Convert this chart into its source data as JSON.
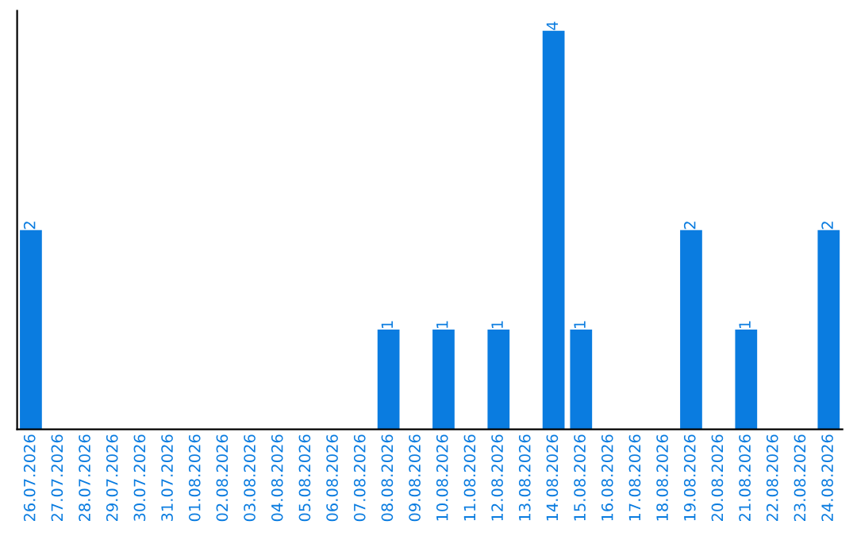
{
  "chart_data": {
    "type": "bar",
    "categories": [
      "26.07.2026",
      "27.07.2026",
      "28.07.2026",
      "29.07.2026",
      "30.07.2026",
      "31.07.2026",
      "01.08.2026",
      "02.08.2026",
      "03.08.2026",
      "04.08.2026",
      "05.08.2026",
      "06.08.2026",
      "07.08.2026",
      "08.08.2026",
      "09.08.2026",
      "10.08.2026",
      "11.08.2026",
      "12.08.2026",
      "13.08.2026",
      "14.08.2026",
      "15.08.2026",
      "16.08.2026",
      "17.08.2026",
      "18.08.2026",
      "19.08.2026",
      "20.08.2026",
      "21.08.2026",
      "22.08.2026",
      "23.08.2026",
      "24.08.2026"
    ],
    "values": [
      2,
      0,
      0,
      0,
      0,
      0,
      0,
      0,
      0,
      0,
      0,
      0,
      0,
      1,
      0,
      1,
      0,
      1,
      0,
      4,
      1,
      0,
      0,
      0,
      2,
      0,
      1,
      0,
      0,
      2
    ],
    "value_labels": [
      "2",
      null,
      null,
      null,
      null,
      null,
      null,
      null,
      null,
      null,
      null,
      null,
      null,
      "1",
      null,
      "1",
      null,
      "1",
      null,
      "4",
      "1",
      null,
      null,
      null,
      "2",
      null,
      "1",
      null,
      null,
      "2"
    ],
    "color": "#0a7ce0",
    "ylim": [
      0,
      4.2
    ],
    "tick_labels": "x",
    "grid": false,
    "legend": false
  }
}
